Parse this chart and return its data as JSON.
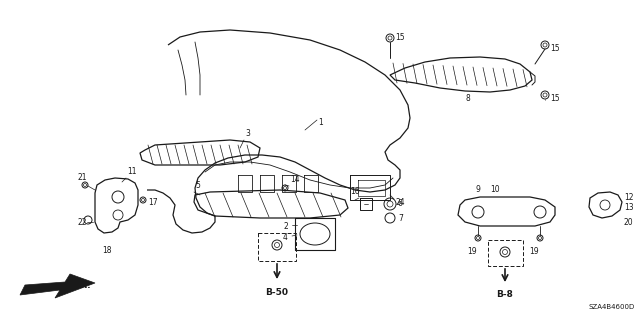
{
  "bg_color": "#ffffff",
  "fig_width": 6.4,
  "fig_height": 3.19,
  "diagram_code": "SZA4B4600D",
  "line_color": "#1a1a1a",
  "label_fontsize": 5.5,
  "bold_label_fontsize": 6.5
}
